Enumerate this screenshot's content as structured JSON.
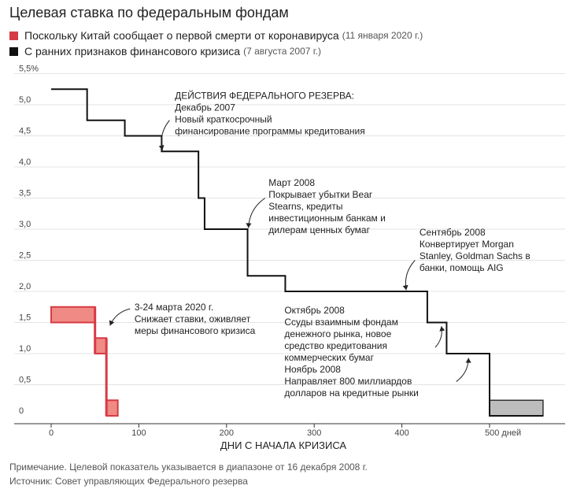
{
  "title": "Целевая ставка по федеральным фондам",
  "legend": [
    {
      "label": "Поскольку Китай сообщает о первой смерти от коронавируса",
      "date": "(11 января 2020 г.)",
      "color": "#d63a45"
    },
    {
      "label": "С ранних признаков финансового кризиса",
      "date": "(7 августа 2007 г.)",
      "color": "#111111"
    }
  ],
  "footer": {
    "note": "Примечание. Целевой показатель указывается в диапазоне от 16 декабря 2008 г.",
    "source": "Источник: Совет управляющих Федерального резерва"
  },
  "chart_data": {
    "type": "line",
    "xlabel": "ДНИ С НАЧАЛА КРИЗИСА",
    "x_ticks": [
      0,
      100,
      200,
      300,
      400,
      500
    ],
    "x_tick_labels": [
      "0",
      "100",
      "200",
      "300",
      "400",
      "500 дней"
    ],
    "y_ticks": [
      0,
      0.5,
      1.0,
      1.5,
      2.0,
      2.5,
      3.0,
      3.5,
      4.0,
      4.5,
      5.0,
      5.5
    ],
    "y_tick_labels": [
      "0",
      "0,5",
      "1,0",
      "1,5",
      "2,0",
      "2,5",
      "3,0",
      "3,5",
      "4,0",
      "4,5",
      "5,0",
      "5,5%"
    ],
    "xlim": [
      -20,
      580
    ],
    "ylim": [
      0,
      5.5
    ],
    "grid": "horizontal",
    "series": [
      {
        "name": "С ранних признаков финансового кризиса",
        "color": "#111111",
        "steps": [
          [
            0,
            5.25
          ],
          [
            41,
            4.75
          ],
          [
            84,
            4.5
          ],
          [
            126,
            4.25
          ],
          [
            168,
            3.5
          ],
          [
            175,
            3.0
          ],
          [
            224,
            2.25
          ],
          [
            267,
            2.0
          ],
          [
            429,
            1.5
          ],
          [
            451,
            1.0
          ],
          [
            500,
            0.0
          ],
          [
            561,
            0.0
          ]
        ],
        "range_band": {
          "start": 500,
          "end": 561,
          "low": 0.0,
          "high": 0.25,
          "color": "#bdbdbd"
        }
      },
      {
        "name": "Поскольку Китай сообщает о первой смерти от коронавируса",
        "color": "#d63a45",
        "bands": [
          {
            "start": 0,
            "end": 50,
            "low": 1.5,
            "high": 1.75
          },
          {
            "start": 50,
            "end": 63,
            "low": 1.0,
            "high": 1.25
          },
          {
            "start": 63,
            "end": 76,
            "low": 0.0,
            "high": 0.25
          }
        ],
        "fill": "#f08a84"
      }
    ],
    "annotations": [
      {
        "lines": [
          "ДЕЙСТВИЯ ФЕДЕРАЛЬНОГО РЕЗЕРВА:",
          "Декабрь 2007",
          "Новый краткосрочный",
          "финансирование программы кредитования"
        ],
        "x": 141,
        "y": 5.25,
        "arrow": [
          [
            135,
            4.75
          ],
          [
            127,
            4.27
          ]
        ]
      },
      {
        "lines": [
          "Март 2008",
          "Покрывает убытки Bear",
          "Stearns, кредиты",
          "инвестиционным банкам и",
          "дилерам ценных бумаг"
        ],
        "x": 248,
        "y": 3.85,
        "arrow": [
          [
            244,
            3.5
          ],
          [
            225,
            3.02
          ]
        ]
      },
      {
        "lines": [
          "Сентябрь 2008",
          "Конвертирует Morgan",
          "Stanley, Goldman Sachs в",
          "банки, помощь AIG"
        ],
        "x": 420,
        "y": 3.05,
        "arrow": [
          [
            415,
            2.5
          ],
          [
            405,
            2.02
          ]
        ]
      },
      {
        "lines": [
          "3-24 марта 2020 г.",
          "Снижает ставки, оживляет",
          "меры финансового кризиса"
        ],
        "x": 95,
        "y": 1.85,
        "arrow": [
          [
            90,
            1.72
          ],
          [
            67,
            1.45
          ]
        ]
      },
      {
        "lines": [
          "Октябрь 2008",
          "Ссуды взаимным фондам",
          "денежного рынка, новое",
          "средство кредитования",
          "коммерческих бумаг",
          "Ноябрь 2008",
          "Направляет 800 миллиардов",
          "долларов на кредитные рынки"
        ],
        "x": 266,
        "y": 1.8,
        "arrow": [
          [
            438,
            1.1
          ],
          [
            445,
            1.44
          ]
        ]
      },
      {
        "lines": [],
        "x": 0,
        "y": 0,
        "arrow": [
          [
            462,
            0.55
          ],
          [
            476,
            0.93
          ]
        ]
      }
    ]
  }
}
